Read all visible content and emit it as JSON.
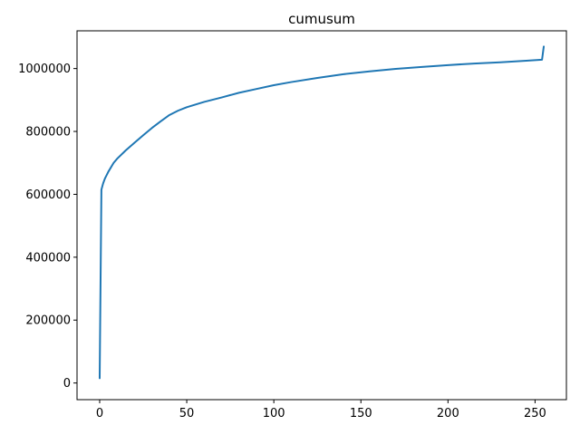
{
  "chart_data": {
    "type": "line",
    "title": "cumusum",
    "xlabel": "",
    "ylabel": "",
    "xlim": [
      -13,
      268
    ],
    "ylim": [
      -53000,
      1120000
    ],
    "xticks": [
      0,
      50,
      100,
      150,
      200,
      250
    ],
    "xtick_labels": [
      "0",
      "50",
      "100",
      "150",
      "200",
      "250"
    ],
    "yticks": [
      0,
      200000,
      400000,
      600000,
      800000,
      1000000
    ],
    "ytick_labels": [
      "0",
      "200000",
      "400000",
      "600000",
      "800000",
      "1000000"
    ],
    "grid": false,
    "legend": "none",
    "series": [
      {
        "color": "#1f77b4",
        "x": [
          0,
          1,
          2,
          3,
          5,
          8,
          10,
          15,
          20,
          25,
          30,
          35,
          40,
          45,
          50,
          60,
          70,
          80,
          90,
          100,
          110,
          125,
          140,
          155,
          170,
          185,
          200,
          215,
          230,
          245,
          254,
          255
        ],
        "y": [
          15000,
          615000,
          635000,
          650000,
          672000,
          700000,
          713000,
          740000,
          764000,
          788000,
          811000,
          832000,
          852000,
          866000,
          877000,
          894000,
          908000,
          923000,
          935000,
          947000,
          957000,
          970000,
          982000,
          991000,
          999000,
          1005000,
          1011000,
          1016000,
          1020000,
          1025000,
          1028000,
          1070000
        ]
      }
    ]
  }
}
